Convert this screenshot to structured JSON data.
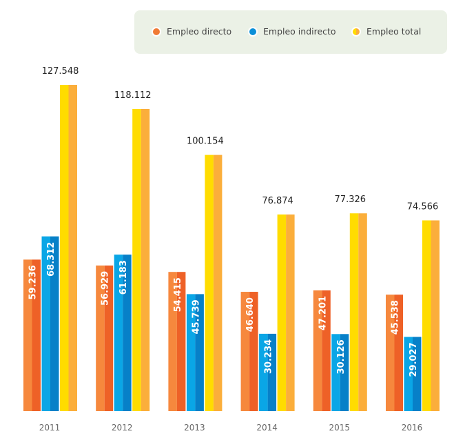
{
  "chart_data": {
    "type": "bar",
    "categories": [
      "2011",
      "2012",
      "2013",
      "2014",
      "2015",
      "2016"
    ],
    "series": [
      {
        "name": "Empleo directo",
        "values": [
          59236,
          56929,
          54415,
          46640,
          47201,
          45538
        ],
        "labels": [
          "59.236",
          "56.929",
          "54.415",
          "46.640",
          "47.201",
          "45.538"
        ],
        "colors": [
          "#f6883d",
          "#ee6127"
        ]
      },
      {
        "name": "Empleo indirecto",
        "values": [
          68312,
          61183,
          45739,
          30234,
          30126,
          29027
        ],
        "labels": [
          "68.312",
          "61.183",
          "45.739",
          "30.234",
          "30.126",
          "29.027"
        ],
        "colors": [
          "#0aa6e6",
          "#0780c8"
        ]
      },
      {
        "name": "Empleo total",
        "values": [
          127548,
          118112,
          100154,
          76874,
          77326,
          74566
        ],
        "labels": [
          "127.548",
          "118.112",
          "100.154",
          "76.874",
          "77.326",
          "74.566"
        ],
        "colors": [
          "#ffdc00",
          "#fbae3b"
        ]
      }
    ],
    "ylim": [
      0,
      160000
    ],
    "grid": false,
    "legend": "top-right"
  }
}
